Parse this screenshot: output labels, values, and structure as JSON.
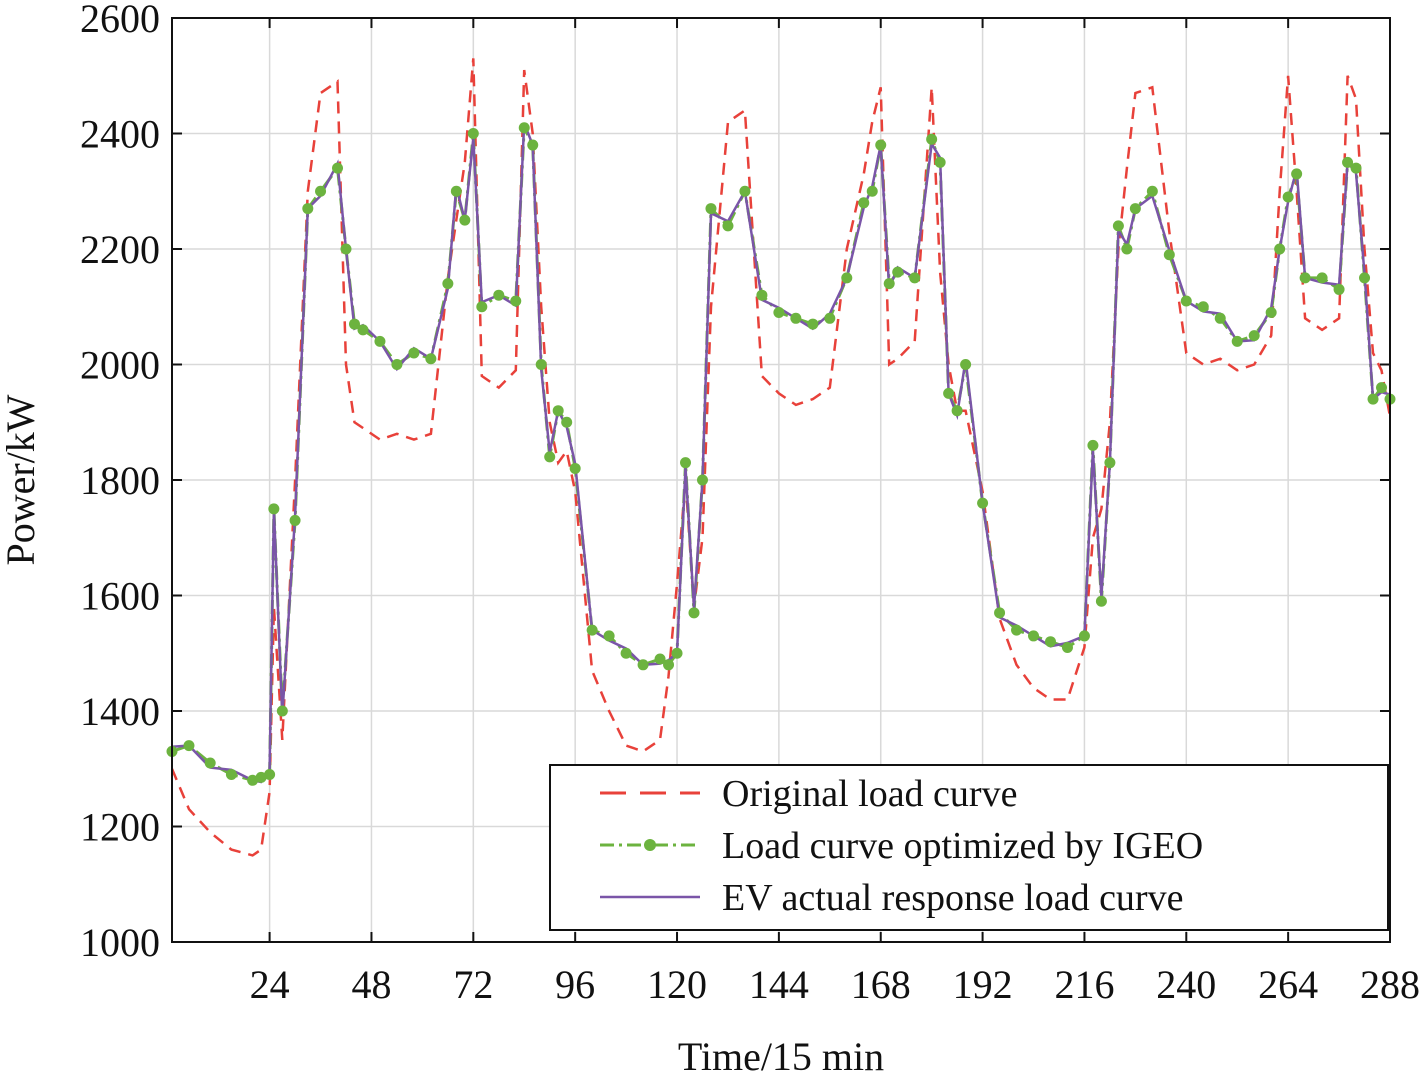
{
  "chart_data": {
    "type": "line",
    "xlabel": "Time/15 min",
    "ylabel": "Power/kW",
    "xlim": [
      1,
      288
    ],
    "ylim": [
      1000,
      2600
    ],
    "xticks": [
      24,
      48,
      72,
      96,
      120,
      144,
      168,
      192,
      216,
      240,
      264,
      288
    ],
    "yticks": [
      1000,
      1200,
      1400,
      1600,
      1800,
      2000,
      2200,
      2400,
      2600
    ],
    "grid": true,
    "legend_position": "bottom-right",
    "knots": {
      "t": [
        1,
        5,
        10,
        15,
        20,
        22,
        24,
        25,
        27,
        30,
        33,
        36,
        40,
        42,
        44,
        46,
        50,
        54,
        58,
        62,
        66,
        68,
        70,
        72,
        74,
        78,
        82,
        84,
        86,
        88,
        90,
        92,
        94,
        96,
        100,
        104,
        108,
        112,
        116,
        118,
        120,
        122,
        124,
        126,
        128,
        132,
        136,
        140,
        144,
        148,
        152,
        156,
        160,
        164,
        166,
        168,
        170,
        172,
        176,
        180,
        182,
        184,
        186,
        188,
        192,
        196,
        200,
        204,
        208,
        212,
        216,
        218,
        220,
        222,
        224,
        226,
        228,
        232,
        236,
        240,
        244,
        248,
        252,
        256,
        260,
        262,
        264,
        266,
        268,
        272,
        276,
        278,
        280,
        282,
        284,
        286,
        288
      ],
      "original": [
        1300,
        1230,
        1190,
        1160,
        1150,
        1160,
        1260,
        1580,
        1350,
        1800,
        2300,
        2470,
        2490,
        2000,
        1900,
        1890,
        1870,
        1880,
        1870,
        1880,
        2150,
        2250,
        2350,
        2530,
        1980,
        1960,
        1990,
        2510,
        2400,
        2100,
        1900,
        1830,
        1850,
        1780,
        1470,
        1400,
        1340,
        1330,
        1350,
        1460,
        1620,
        1800,
        1580,
        1700,
        2100,
        2420,
        2440,
        1980,
        1950,
        1930,
        1940,
        1960,
        2200,
        2330,
        2420,
        2480,
        2000,
        2010,
        2040,
        2480,
        2160,
        2000,
        1920,
        1920,
        1780,
        1560,
        1480,
        1440,
        1420,
        1420,
        1510,
        1700,
        1750,
        1900,
        2200,
        2340,
        2470,
        2480,
        2230,
        2020,
        2000,
        2010,
        1990,
        2000,
        2050,
        2300,
        2500,
        2300,
        2080,
        2060,
        2080,
        2500,
        2460,
        2200,
        2020,
        1990,
        1910
      ],
      "optimized": [
        1330,
        1340,
        1310,
        1290,
        1280,
        1285,
        1290,
        1750,
        1400,
        1730,
        2270,
        2300,
        2340,
        2200,
        2070,
        2060,
        2040,
        2000,
        2020,
        2010,
        2140,
        2300,
        2250,
        2400,
        2100,
        2120,
        2110,
        2410,
        2380,
        2000,
        1840,
        1920,
        1900,
        1820,
        1540,
        1530,
        1500,
        1480,
        1490,
        1480,
        1500,
        1830,
        1570,
        1800,
        2270,
        2240,
        2300,
        2120,
        2090,
        2080,
        2070,
        2080,
        2150,
        2280,
        2300,
        2380,
        2140,
        2160,
        2150,
        2390,
        2350,
        1950,
        1920,
        2000,
        1760,
        1570,
        1540,
        1530,
        1520,
        1510,
        1530,
        1860,
        1590,
        1830,
        2240,
        2200,
        2270,
        2300,
        2190,
        2110,
        2100,
        2080,
        2040,
        2050,
        2090,
        2200,
        2290,
        2330,
        2150,
        2150,
        2130,
        2350,
        2340,
        2150,
        1940,
        1960,
        1940
      ]
    },
    "series": [
      {
        "name": "Original load curve",
        "color": "#e8413a",
        "style": "dashed"
      },
      {
        "name": "Load curve optimized by IGEO",
        "color": "#6cb33f",
        "style": "dash-dot with circle markers"
      },
      {
        "name": "EV actual response load curve",
        "color": "#7a55a8",
        "style": "solid"
      }
    ]
  }
}
